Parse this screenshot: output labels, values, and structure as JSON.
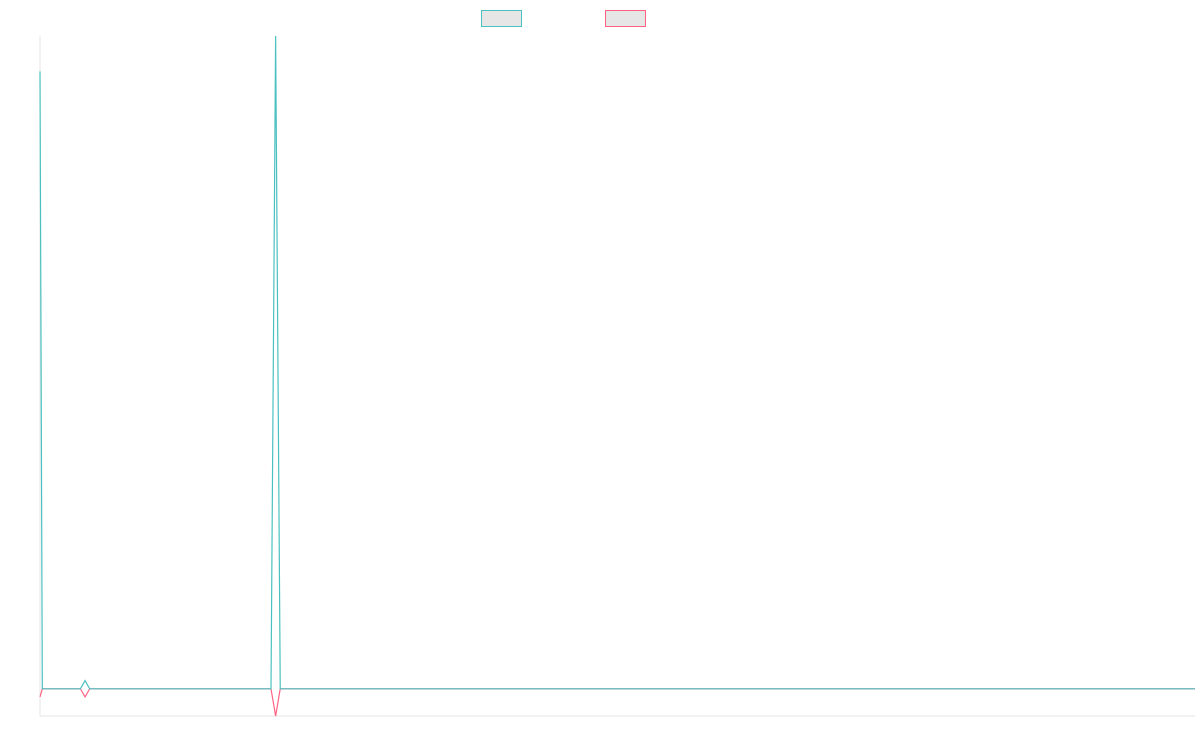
{
  "chart_data": {
    "type": "line",
    "legend_placement": "top-center",
    "grid": false,
    "x_tick_labels_visible": false,
    "y_tick_labels_visible": false,
    "xlim": [
      0,
      100
    ],
    "ylim": [
      -1,
      24
    ],
    "series": [
      {
        "color": "#4bc0c0",
        "legend_swatch_fill": "#e6e6e6",
        "points": [
          [
            0.0,
            22.7
          ],
          [
            0.2,
            0.0
          ],
          [
            3.5,
            0.0
          ],
          [
            3.9,
            0.3
          ],
          [
            4.3,
            0.0
          ],
          [
            20.0,
            0.0
          ],
          [
            20.4,
            24.0
          ],
          [
            20.8,
            0.0
          ],
          [
            100.0,
            0.0
          ]
        ]
      },
      {
        "color": "#ff6384",
        "legend_swatch_fill": "#e6e6e6",
        "points": [
          [
            0.0,
            -0.3
          ],
          [
            0.2,
            0.0
          ],
          [
            3.5,
            0.0
          ],
          [
            3.9,
            -0.3
          ],
          [
            4.3,
            0.0
          ],
          [
            20.0,
            0.0
          ],
          [
            20.4,
            -1.0
          ],
          [
            20.8,
            0.0
          ],
          [
            100.0,
            0.0
          ]
        ]
      }
    ]
  }
}
